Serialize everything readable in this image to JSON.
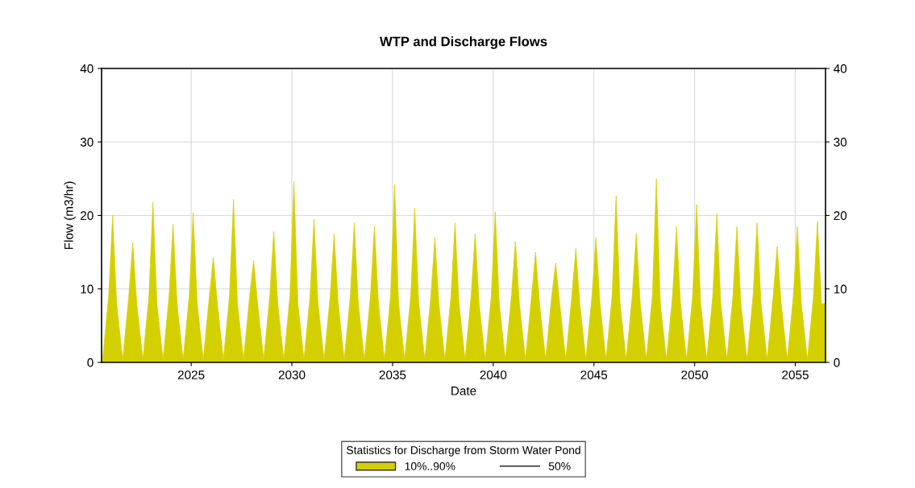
{
  "chart_data": {
    "type": "area",
    "title": "WTP and Discharge Flows",
    "xlabel": "Date",
    "ylabel": "Flow (m3/hr)",
    "legend_title": "Statistics for Discharge from Storm Water Pond",
    "x": [
      2020.6,
      2020.9,
      2021.1,
      2021.3,
      2021.6,
      2021.9,
      2022.1,
      2022.3,
      2022.6,
      2022.9,
      2023.1,
      2023.3,
      2023.6,
      2023.9,
      2024.1,
      2024.3,
      2024.6,
      2024.9,
      2025.1,
      2025.3,
      2025.6,
      2025.9,
      2026.1,
      2026.3,
      2026.6,
      2026.9,
      2027.1,
      2027.3,
      2027.6,
      2027.9,
      2028.1,
      2028.3,
      2028.6,
      2028.9,
      2029.1,
      2029.3,
      2029.6,
      2029.9,
      2030.1,
      2030.3,
      2030.6,
      2030.9,
      2031.1,
      2031.3,
      2031.6,
      2031.9,
      2032.1,
      2032.3,
      2032.6,
      2032.9,
      2033.1,
      2033.3,
      2033.6,
      2033.9,
      2034.1,
      2034.3,
      2034.6,
      2034.9,
      2035.1,
      2035.3,
      2035.6,
      2035.9,
      2036.1,
      2036.3,
      2036.6,
      2036.9,
      2037.1,
      2037.3,
      2037.6,
      2037.9,
      2038.1,
      2038.3,
      2038.6,
      2038.9,
      2039.1,
      2039.3,
      2039.6,
      2039.9,
      2040.1,
      2040.3,
      2040.6,
      2040.9,
      2041.1,
      2041.3,
      2041.6,
      2041.9,
      2042.1,
      2042.3,
      2042.6,
      2042.9,
      2043.1,
      2043.3,
      2043.6,
      2043.9,
      2044.1,
      2044.3,
      2044.6,
      2044.9,
      2045.1,
      2045.3,
      2045.6,
      2045.9,
      2046.1,
      2046.3,
      2046.6,
      2046.9,
      2047.1,
      2047.3,
      2047.6,
      2047.9,
      2048.1,
      2048.3,
      2048.6,
      2048.9,
      2049.1,
      2049.3,
      2049.6,
      2049.9,
      2050.1,
      2050.3,
      2050.6,
      2050.9,
      2051.1,
      2051.3,
      2051.6,
      2051.9,
      2052.1,
      2052.3,
      2052.6,
      2052.9,
      2053.1,
      2053.3,
      2053.6,
      2053.9,
      2054.1,
      2054.3,
      2054.6,
      2054.9,
      2055.1,
      2055.3,
      2055.6,
      2055.9,
      2056.1,
      2056.3,
      2056.5
    ],
    "series": [
      {
        "name": "10%..90%",
        "color": "#d4d000",
        "values": [
          0.4,
          9,
          20,
          8,
          0.4,
          9,
          16.3,
          8,
          0.4,
          9,
          21.8,
          8,
          0.4,
          9,
          18.8,
          8,
          0.4,
          9,
          20.4,
          8,
          0.4,
          9,
          14.3,
          8,
          0.4,
          9,
          22.2,
          8,
          0.4,
          9,
          13.9,
          8,
          0.4,
          9,
          17.8,
          8,
          0.4,
          9,
          24.6,
          8,
          0.4,
          9,
          19.5,
          8,
          0.4,
          9,
          17.5,
          8,
          0.4,
          9,
          19,
          8,
          0.4,
          9,
          18.5,
          8,
          0.4,
          9,
          24.2,
          8,
          0.4,
          9,
          21,
          8,
          0.4,
          9,
          17,
          8,
          0.4,
          9,
          19,
          8,
          0.4,
          9,
          17.5,
          8,
          0.4,
          9,
          20.5,
          8,
          0.4,
          9,
          16.5,
          8,
          0.4,
          9,
          15,
          8,
          0.4,
          9,
          13.5,
          8,
          0.4,
          9,
          15.5,
          8,
          0.4,
          9,
          17,
          8,
          0.4,
          9,
          22.7,
          8,
          0.4,
          9,
          17.5,
          8,
          0.4,
          9,
          25,
          8,
          0.4,
          9,
          18.5,
          8,
          0.4,
          9,
          21.5,
          8,
          0.4,
          9,
          20.2,
          8,
          0.4,
          9,
          18.5,
          8,
          0.4,
          9,
          19,
          8,
          0.4,
          9,
          15.8,
          8,
          0.4,
          9,
          18.5,
          8,
          0.4,
          9,
          19.2,
          8,
          8
        ]
      },
      {
        "name": "50%",
        "type": "line",
        "color": "#000000",
        "values": [
          null,
          null,
          null,
          null,
          null,
          null,
          null,
          null,
          null,
          null,
          null,
          null,
          null,
          null,
          null,
          null,
          null,
          null,
          null,
          null,
          null,
          null,
          null,
          null,
          null,
          null,
          null,
          null,
          null,
          null,
          null,
          null,
          null,
          null,
          null,
          null,
          null,
          null,
          null,
          null,
          null,
          null,
          null,
          null,
          null,
          null,
          null,
          null,
          null,
          null,
          null,
          null,
          null,
          null,
          null,
          null,
          null,
          null,
          null,
          null,
          null,
          null,
          null,
          null,
          null,
          null,
          null,
          null,
          null,
          null,
          null,
          null,
          null,
          null,
          null,
          null,
          null,
          null,
          null,
          null,
          null,
          null,
          null,
          null,
          null,
          null,
          null,
          null,
          null,
          null,
          null,
          null,
          null,
          null,
          null,
          null,
          null,
          null,
          null,
          null,
          null,
          null,
          null,
          null,
          null,
          null,
          null,
          null,
          null,
          null,
          null,
          null,
          null,
          null,
          null,
          null,
          null,
          null,
          null,
          null,
          null,
          null,
          null,
          null,
          null,
          null,
          null,
          null,
          null,
          null,
          null,
          null,
          null,
          null,
          null,
          null,
          null,
          null,
          null,
          null,
          null,
          null,
          null,
          null,
          null
        ]
      }
    ],
    "xlim": [
      2020.55,
      2056.5
    ],
    "xticks": [
      2025,
      2030,
      2035,
      2040,
      2045,
      2050,
      2055
    ],
    "ylim": [
      0,
      40
    ],
    "yticks": [
      0,
      10,
      20,
      30,
      40
    ],
    "y2lim": [
      0,
      40
    ],
    "y2ticks": [
      0,
      10,
      20,
      30,
      40
    ],
    "grid": true,
    "legend": "bottom"
  }
}
